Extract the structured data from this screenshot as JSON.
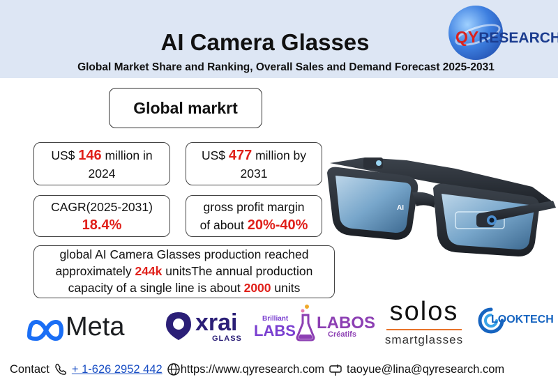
{
  "header": {
    "title": "AI Camera Glasses",
    "subtitle": "Global Market Share and Ranking, Overall Sales and Demand Forecast 2025-2031"
  },
  "logo": {
    "q": "Q",
    "y": "Y",
    "r": "RESEARCH"
  },
  "global_box": {
    "label": "Global markrt"
  },
  "market_2024": {
    "prefix": "US$ ",
    "value": "146",
    "suffix": " million in",
    "line2": "2024"
  },
  "market_2031": {
    "prefix": "US$ ",
    "value": "477",
    "suffix": " million by",
    "line2": "2031"
  },
  "cagr": {
    "label": "CAGR(2025-2031)",
    "value": "18.4%"
  },
  "margin": {
    "line1": "gross profit margin",
    "prefix": "of about ",
    "value": "20%-40%"
  },
  "production": {
    "line1": "global AI Camera Glasses production reached",
    "line2_prefix": "approximately ",
    "line2_value": "244k",
    "line2_suffix": " unitsThe annual production",
    "line3_prefix": "capacity of a single line is about ",
    "line3_value": "2000",
    "line3_suffix": " units"
  },
  "brands": {
    "meta": "Meta",
    "xrai": "xrai",
    "xrai_sub": "GLASS",
    "brilliant_small": "Brilliant",
    "brilliant_labs": "LABS",
    "labos": "LABOS",
    "labos_sub": "Créatifs",
    "solos": "solos",
    "solos_sub": "smartglasses",
    "looktech": "LOOKTECH"
  },
  "contact": {
    "label": "Contact",
    "phone": "+ 1-626 2952 442",
    "website": "https://www.qyresearch.com",
    "email": "taoyue@lina@qyresearch.com"
  },
  "colors": {
    "header_bg": "#dde6f4",
    "accent_red": "#e0201a",
    "link_blue": "#1a4fc4"
  }
}
